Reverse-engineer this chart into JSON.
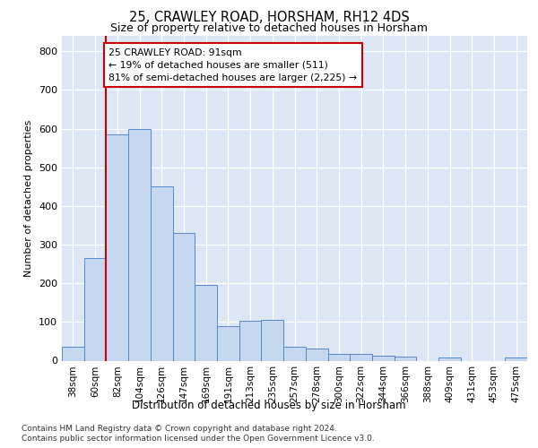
{
  "title": "25, CRAWLEY ROAD, HORSHAM, RH12 4DS",
  "subtitle": "Size of property relative to detached houses in Horsham",
  "xlabel": "Distribution of detached houses by size in Horsham",
  "ylabel": "Number of detached properties",
  "bar_labels": [
    "38sqm",
    "60sqm",
    "82sqm",
    "104sqm",
    "126sqm",
    "147sqm",
    "169sqm",
    "191sqm",
    "213sqm",
    "235sqm",
    "257sqm",
    "278sqm",
    "300sqm",
    "322sqm",
    "344sqm",
    "366sqm",
    "388sqm",
    "409sqm",
    "431sqm",
    "453sqm",
    "475sqm"
  ],
  "bar_values": [
    35,
    265,
    585,
    600,
    450,
    330,
    195,
    90,
    103,
    105,
    35,
    32,
    18,
    17,
    12,
    11,
    0,
    7,
    0,
    0,
    8
  ],
  "bar_color": "#c5d8f0",
  "bar_edge_color": "#5588cc",
  "property_bin_index": 2,
  "annotation_text": "25 CRAWLEY ROAD: 91sqm\n← 19% of detached houses are smaller (511)\n81% of semi-detached houses are larger (2,225) →",
  "annotation_box_color": "#cc0000",
  "ylim": [
    0,
    840
  ],
  "yticks": [
    0,
    100,
    200,
    300,
    400,
    500,
    600,
    700,
    800
  ],
  "footer1": "Contains HM Land Registry data © Crown copyright and database right 2024.",
  "footer2": "Contains public sector information licensed under the Open Government Licence v3.0.",
  "bg_color": "#dce6f5"
}
